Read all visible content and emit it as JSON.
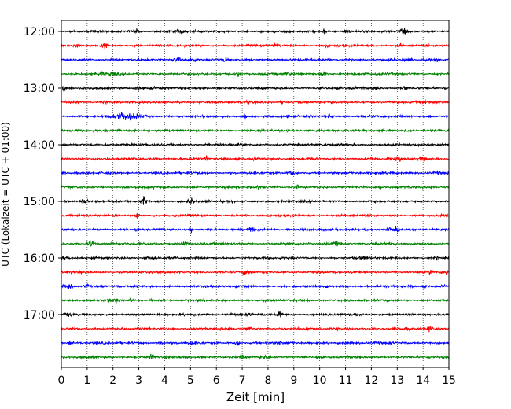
{
  "chart_data": {
    "type": "line",
    "title": "",
    "xlabel": "Zeit  [min]",
    "ylabel": "UTC (Lokalzeit = UTC + 01:00)",
    "xlim": [
      0,
      15
    ],
    "x_ticks": [
      0,
      1,
      2,
      3,
      4,
      5,
      6,
      7,
      8,
      9,
      10,
      11,
      12,
      13,
      14,
      15
    ],
    "y_tick_labels": [
      "12:00",
      "13:00",
      "14:00",
      "15:00",
      "16:00",
      "17:00"
    ],
    "row_interval_minutes": 15,
    "rows_start": "12:00",
    "row_count": 24,
    "row_colors": [
      "#000000",
      "#ff0000",
      "#0000ff",
      "#008000"
    ],
    "grid": "vertical dotted lines at each minute",
    "legend": "none",
    "notable_events": [
      {
        "row": "13:30",
        "minute_range": [
          1.7,
          3.3
        ],
        "description": "large burst"
      }
    ]
  }
}
